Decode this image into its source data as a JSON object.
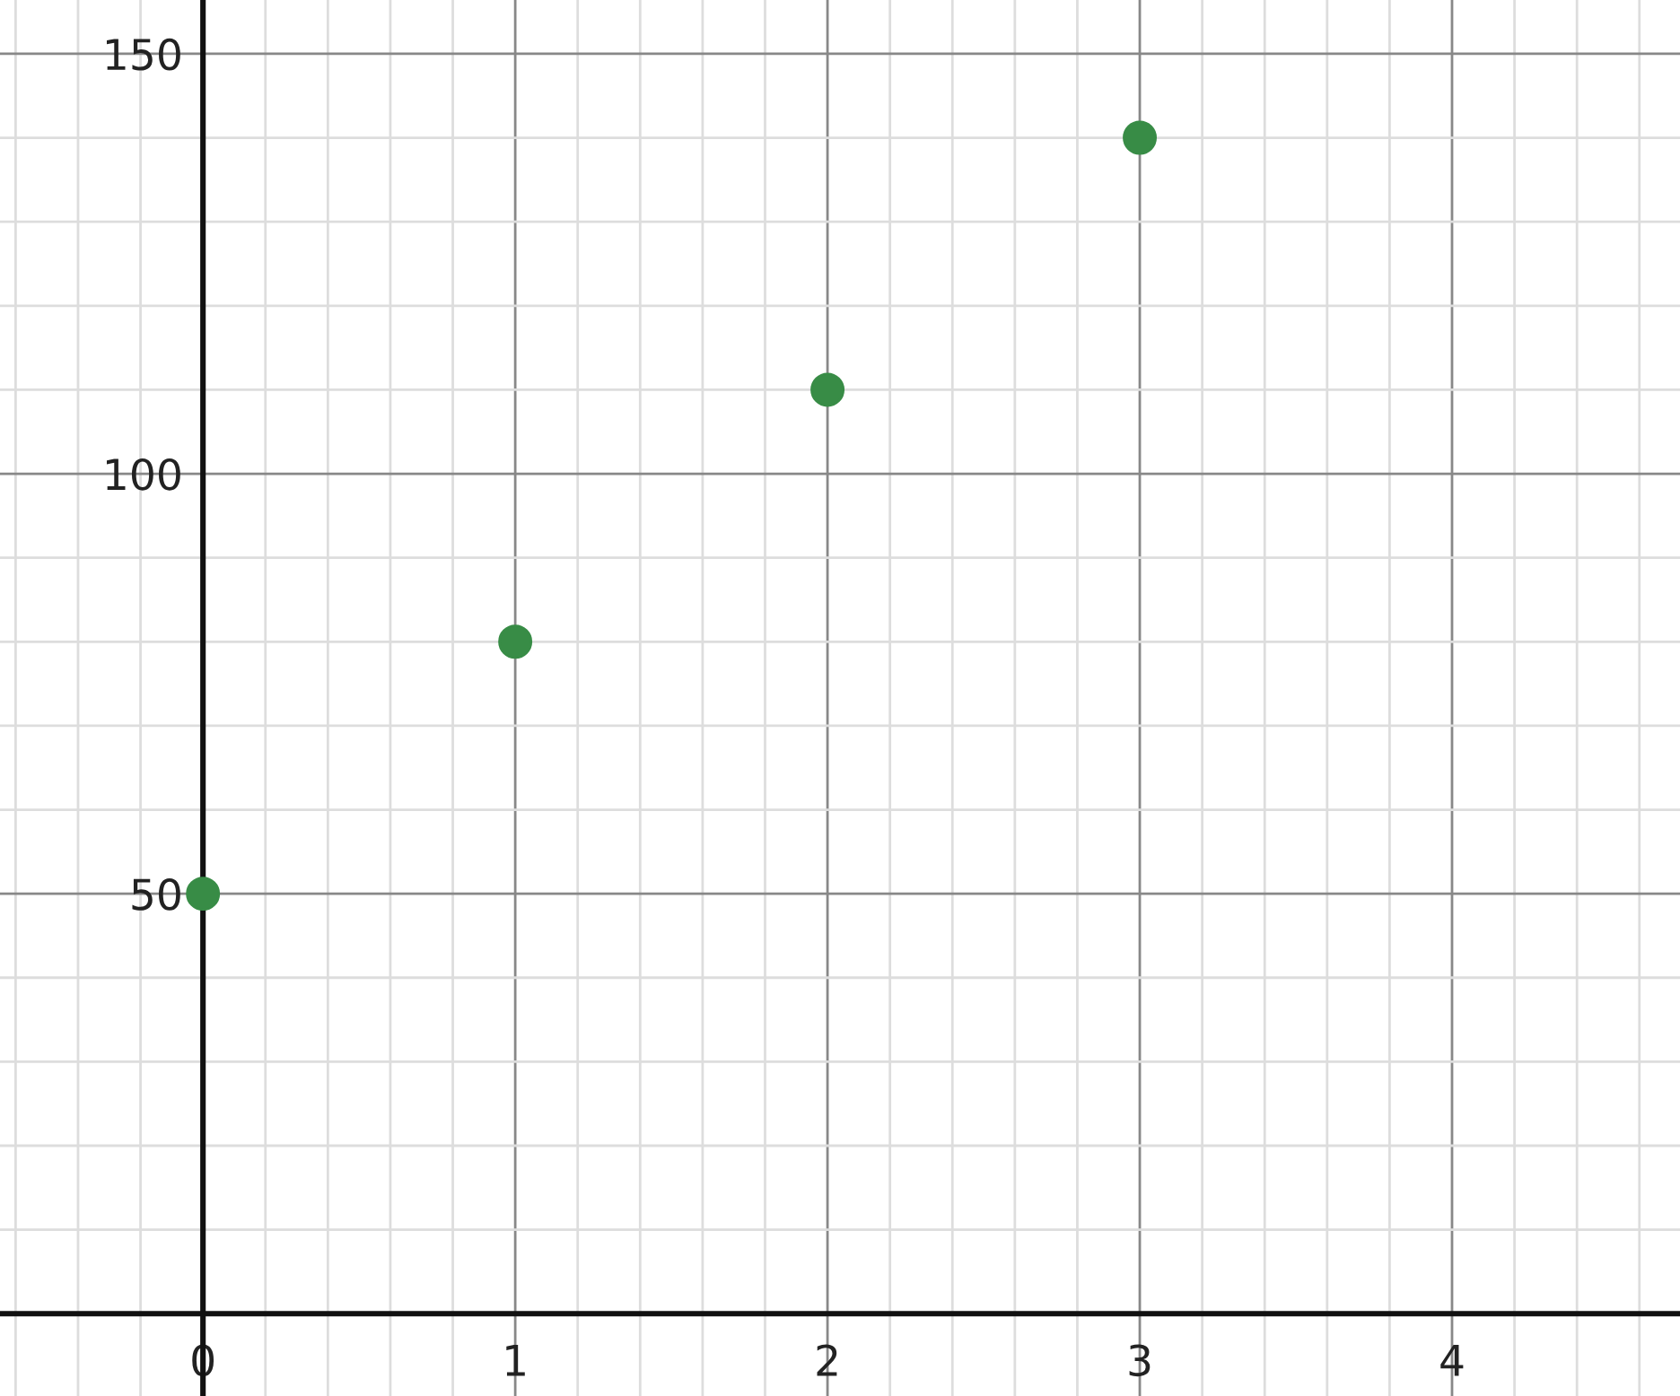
{
  "chart_data": {
    "type": "scatter",
    "x": [
      0,
      1,
      2,
      3
    ],
    "values": [
      50,
      80,
      110,
      140
    ],
    "color": "#388c46",
    "marker": "circle",
    "xlim": [
      -0.65,
      4.73
    ],
    "ylim": [
      -9.8,
      156.4
    ],
    "xticks": [
      0,
      1,
      2,
      3,
      4
    ],
    "yticks": [
      50,
      100,
      150
    ],
    "grid": true
  }
}
